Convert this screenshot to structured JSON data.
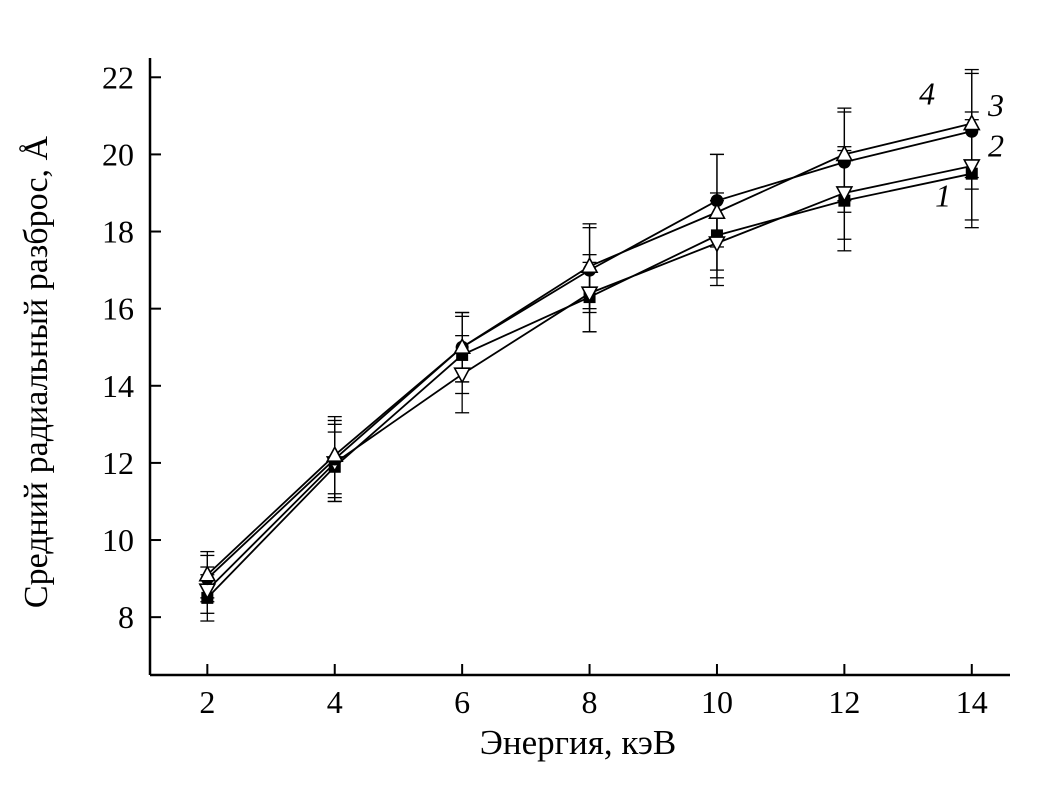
{
  "chart_data": {
    "type": "line",
    "title": "",
    "xlabel": "Энергия, кэВ",
    "ylabel": "Средний радиальный разброс, Å",
    "xlim": [
      1.1,
      14.6
    ],
    "ylim": [
      6.5,
      22.5
    ],
    "xticks": [
      2,
      4,
      6,
      8,
      10,
      12,
      14
    ],
    "yticks": [
      8,
      10,
      12,
      14,
      16,
      18,
      20,
      22
    ],
    "grid": false,
    "legend": "inline-numeric-labels",
    "axis_color": "#000000",
    "x": [
      2,
      4,
      6,
      8,
      10,
      12,
      14
    ],
    "series": [
      {
        "name": "1",
        "marker": "square-filled",
        "values": [
          8.5,
          11.9,
          14.8,
          16.3,
          17.9,
          18.8,
          19.5
        ],
        "errors": [
          0.6,
          0.9,
          1.0,
          0.9,
          1.1,
          1.3,
          1.4
        ],
        "label_x": 13.55,
        "label_y": 18.65
      },
      {
        "name": "2",
        "marker": "triangle-down-open",
        "values": [
          8.7,
          12.0,
          14.3,
          16.4,
          17.7,
          19.0,
          19.7
        ],
        "errors": [
          0.6,
          1.0,
          1.0,
          1.0,
          1.1,
          1.2,
          1.4
        ],
        "label_x": 14.38,
        "label_y": 19.95
      },
      {
        "name": "3",
        "marker": "circle-filled",
        "values": [
          9.0,
          12.1,
          15.0,
          17.0,
          18.8,
          19.8,
          20.6
        ],
        "errors": [
          0.6,
          1.0,
          0.9,
          1.1,
          1.2,
          1.3,
          1.5
        ],
        "label_x": 14.38,
        "label_y": 21.0
      },
      {
        "name": "4",
        "marker": "triangle-up-open",
        "values": [
          9.1,
          12.2,
          15.0,
          17.1,
          18.5,
          20.0,
          20.8
        ],
        "errors": [
          0.6,
          1.0,
          0.9,
          1.1,
          1.5,
          1.2,
          1.4
        ],
        "label_x": 13.3,
        "label_y": 21.3
      }
    ]
  }
}
